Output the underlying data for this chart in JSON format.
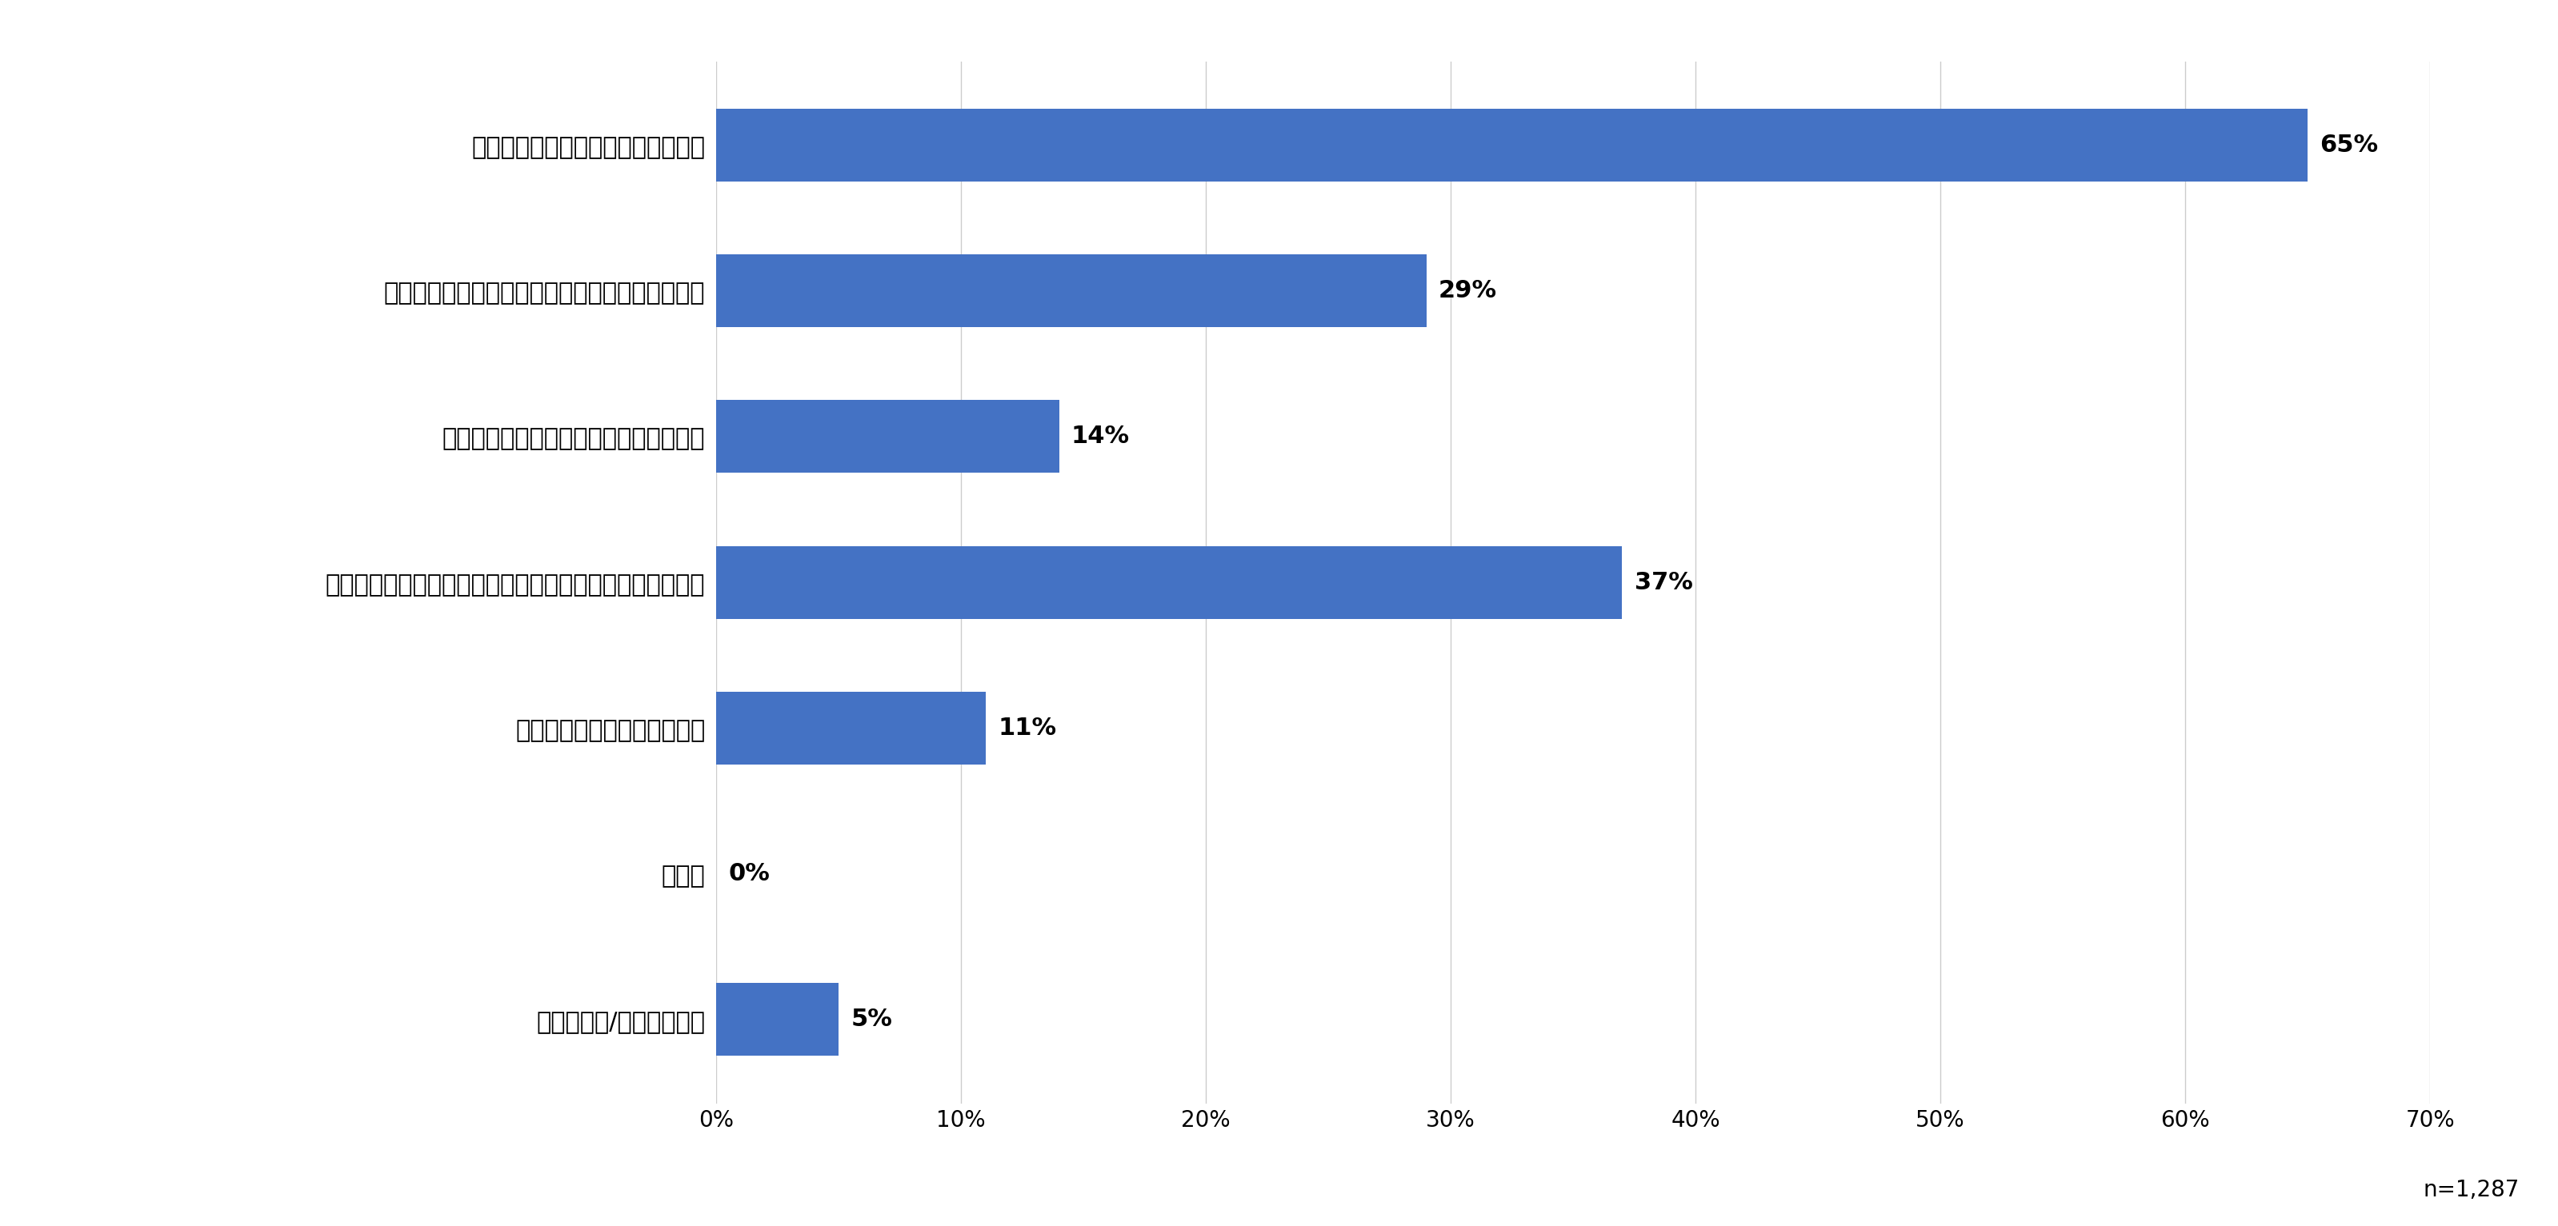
{
  "categories": [
    "件名（タイトル）や内容が興味深い",
    "メールマガジンの送信者や企業自体に関心がある",
    "レイアウトや画像がきれいで読みやすい",
    "メールマガジンの冒頭に興味のある情報が掛載されている",
    "特に重視するポイントはない",
    "その他",
    "分からない/答えられない"
  ],
  "values": [
    65,
    29,
    14,
    37,
    11,
    0,
    5
  ],
  "labels": [
    "65%",
    "29%",
    "14%",
    "37%",
    "11%",
    "0%",
    "5%"
  ],
  "bar_color": "#4472C4",
  "background_color": "#ffffff",
  "xlim": [
    0,
    70
  ],
  "xticks": [
    0,
    10,
    20,
    30,
    40,
    50,
    60,
    70
  ],
  "xticklabels": [
    "0%",
    "10%",
    "20%",
    "30%",
    "40%",
    "50%",
    "60%",
    "70%"
  ],
  "note": "n=1,287",
  "grid_color": "#cccccc",
  "label_fontsize": 22,
  "tick_fontsize": 20,
  "note_fontsize": 20,
  "value_fontsize": 22,
  "bar_height": 0.5
}
